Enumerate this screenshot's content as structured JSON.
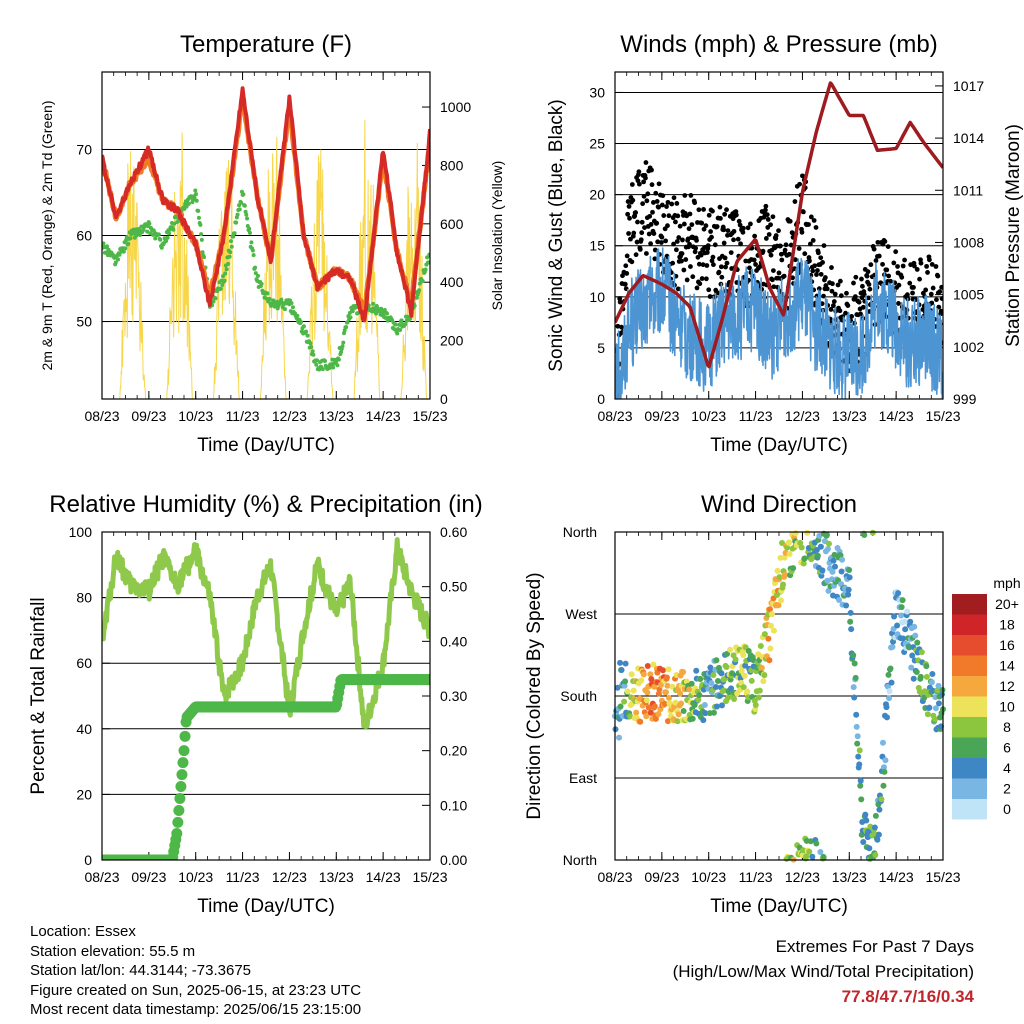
{
  "x_ticks": [
    "08/23",
    "09/23",
    "10/23",
    "11/23",
    "12/23",
    "13/23",
    "14/23",
    "15/23"
  ],
  "chart_data": [
    {
      "type": "line",
      "title": "Temperature (F)",
      "xlabel": "Time (Day/UTC)",
      "ylabel": "2m & 9m T (Red, Orange) & 2m Td (Green)",
      "ylabel_right": "Solar Insolation (Yellow)",
      "ylim": [
        41,
        79
      ],
      "y_ticks": [
        50,
        60,
        70
      ],
      "y2lim": [
        0,
        1120
      ],
      "y2_ticks": [
        0,
        200,
        400,
        600,
        800,
        1000
      ],
      "x": [
        0,
        0.3,
        0.6,
        1.0,
        1.3,
        1.6,
        2.0,
        2.3,
        2.6,
        3.0,
        3.3,
        3.6,
        4.0,
        4.3,
        4.6,
        5.0,
        5.3,
        5.6,
        6.0,
        6.3,
        6.6,
        7.0
      ],
      "series": [
        {
          "name": "2m T",
          "color": "#d62a26",
          "values": [
            69,
            62,
            66,
            70,
            64,
            63,
            59,
            52,
            60,
            77,
            65,
            57,
            76,
            60,
            54,
            56,
            55,
            50,
            70,
            58,
            51,
            72
          ]
        },
        {
          "name": "9m T",
          "color": "#f07a25",
          "values": [
            69,
            62,
            66,
            69,
            64,
            63,
            59,
            53,
            60,
            76,
            65,
            57,
            75,
            60,
            54,
            56,
            55,
            51,
            69,
            58,
            52,
            71
          ]
        },
        {
          "name": "2m Td",
          "color": "#4db748",
          "values": [
            59,
            57,
            60,
            61,
            59,
            62,
            65,
            52,
            55,
            65,
            55,
            52,
            52,
            49,
            45,
            45,
            51,
            52,
            51,
            49,
            51,
            58
          ]
        },
        {
          "name": "Solar Insolation",
          "color": "#f7d64a",
          "axis": "right",
          "values": [
            0,
            300,
            1000,
            0,
            250,
            600,
            0,
            200,
            900,
            0,
            300,
            1050,
            0,
            280,
            900,
            0,
            300,
            1000,
            0,
            250,
            700,
            0
          ]
        }
      ]
    },
    {
      "type": "line",
      "title": "Winds (mph) & Pressure (mb)",
      "xlabel": "Time (Day/UTC)",
      "ylabel": "Sonic Wind & Gust (Blue, Black)",
      "ylabel_right": "Station Pressure (Maroon)",
      "ylim": [
        0,
        32
      ],
      "y_ticks": [
        0,
        5,
        10,
        15,
        20,
        25,
        30
      ],
      "y2lim": [
        999,
        1017.8
      ],
      "y2_ticks": [
        999,
        1002,
        1005,
        1008,
        1011,
        1014,
        1017
      ],
      "x": [
        0,
        0.3,
        0.6,
        1.0,
        1.3,
        1.6,
        2.0,
        2.3,
        2.6,
        3.0,
        3.3,
        3.6,
        4.0,
        4.3,
        4.6,
        5.0,
        5.3,
        5.6,
        6.0,
        6.3,
        6.6,
        7.0
      ],
      "series": [
        {
          "name": "Sonic Wind",
          "color": "#4d94d3",
          "values": [
            1,
            7,
            9,
            11,
            8,
            6,
            5,
            7,
            8,
            9,
            6,
            8,
            10,
            7,
            5,
            4,
            5,
            10,
            7,
            5,
            6,
            4
          ]
        },
        {
          "name": "Gust",
          "color": "#000000",
          "values": [
            1,
            16,
            19,
            17,
            15,
            16,
            14,
            15,
            14,
            13,
            15,
            12,
            18,
            13,
            9,
            7,
            8,
            12,
            10,
            9,
            11,
            7
          ]
        },
        {
          "name": "Station Pressure",
          "color": "#9e1b1f",
          "axis": "right",
          "values": [
            1003.4,
            1005.1,
            1006.1,
            1005.6,
            1005.1,
            1004.3,
            1000.8,
            1003.7,
            1006.9,
            1008.2,
            1005.4,
            1003.8,
            1010.9,
            1014.4,
            1017.2,
            1015.3,
            1015.3,
            1013.3,
            1013.4,
            1014.9,
            1013.7,
            1012.3
          ]
        }
      ]
    },
    {
      "type": "line",
      "title": "Relative Humidity (%) & Precipitation (in)",
      "xlabel": "Time (Day/UTC)",
      "ylabel": "Percent & Total Rainfall",
      "ylim": [
        0,
        100
      ],
      "y_ticks": [
        0,
        20,
        40,
        60,
        80,
        100
      ],
      "y2lim": [
        0,
        0.6
      ],
      "y2_ticks": [
        "0.00",
        "0.10",
        "0.20",
        "0.30",
        "0.40",
        "0.50",
        "0.60"
      ],
      "x": [
        0,
        0.3,
        0.6,
        1.0,
        1.3,
        1.6,
        2.0,
        2.3,
        2.6,
        3.0,
        3.3,
        3.6,
        4.0,
        4.3,
        4.6,
        5.0,
        5.3,
        5.6,
        6.0,
        6.3,
        6.6,
        7.0
      ],
      "series": [
        {
          "name": "Relative Humidity",
          "color": "#8fc94b",
          "values": [
            66,
            93,
            84,
            82,
            92,
            84,
            94,
            80,
            50,
            60,
            80,
            90,
            45,
            70,
            90,
            75,
            85,
            40,
            60,
            95,
            82,
            70
          ]
        },
        {
          "name": "Total Precipitation",
          "color": "#4db748",
          "axis": "right",
          "cumulative_x": [
            0,
            1.5,
            1.6,
            1.75,
            1.8,
            2.0,
            5.0,
            5.1,
            7.0
          ],
          "cumulative_values": [
            0,
            0,
            0.05,
            0.2,
            0.26,
            0.28,
            0.28,
            0.33,
            0.33
          ]
        }
      ]
    },
    {
      "type": "scatter",
      "title": "Wind Direction",
      "xlabel": "Time (Day/UTC)",
      "ylabel": "Direction (Colored By Speed)",
      "y_ticks": [
        "North",
        "East",
        "South",
        "West",
        "North"
      ],
      "ylim": [
        0,
        360
      ],
      "colorbar": {
        "unit": "mph",
        "labels": [
          "20+",
          "18",
          "16",
          "14",
          "12",
          "10",
          "8",
          "6",
          "4",
          "2",
          "0"
        ],
        "colors": [
          "#a11d1f",
          "#cf2428",
          "#e64d2e",
          "#f07a2a",
          "#f5a83e",
          "#ece35a",
          "#8cc63f",
          "#4aa656",
          "#3f86c5",
          "#79b6e4",
          "#bfe4f8"
        ]
      },
      "x": [
        0.1,
        0.4,
        0.8,
        1.2,
        1.6,
        2.0,
        2.3,
        2.7,
        3.0,
        3.3,
        3.6,
        3.9,
        4.2,
        4.6,
        5.0,
        5.3,
        5.6,
        6.0,
        6.3,
        6.7,
        7.0
      ],
      "directions": [
        190,
        180,
        185,
        180,
        178,
        185,
        200,
        210,
        190,
        250,
        330,
        350,
        360,
        320,
        300,
        20,
        30,
        280,
        240,
        180,
        160
      ],
      "speeds": [
        2,
        10,
        14,
        12,
        8,
        4,
        6,
        8,
        6,
        12,
        10,
        8,
        6,
        4,
        4,
        6,
        6,
        2,
        4,
        6,
        4
      ]
    }
  ],
  "info": {
    "location": "Location: Essex",
    "elevation": "Station elevation: 55.5 m",
    "latlon": "Station lat/lon: 44.3144; -73.3675",
    "created": "Figure created on Sun, 2025-06-15, at 23:23 UTC",
    "recent": "Most recent data timestamp: 2025/06/15 23:15:00"
  },
  "extremes": {
    "title": "Extremes For Past 7 Days",
    "subtitle": "(High/Low/Max Wind/Total Precipitation)",
    "values": "77.8/47.7/16/0.34"
  }
}
